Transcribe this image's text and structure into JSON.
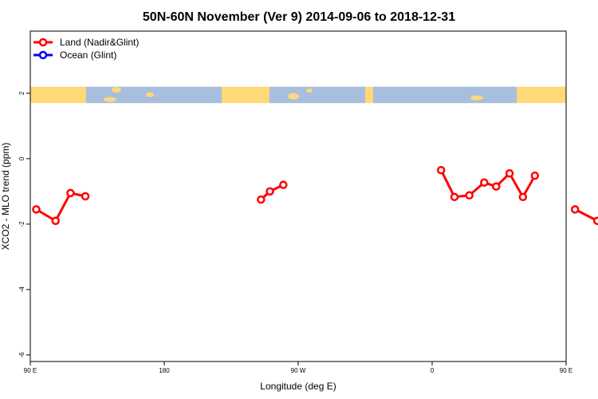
{
  "chart_data": {
    "type": "line",
    "title": "50N-60N November (Ver 9)   2014-09-06 to 2018-12-31",
    "xlabel": "Longitude (deg E)",
    "ylabel": "XCO2 - MLO trend (ppm)",
    "xlim": [
      90,
      450
    ],
    "ylim": [
      -6.2,
      3.9
    ],
    "x_ticks": [
      {
        "value": 90,
        "label": "90 E"
      },
      {
        "value": 180,
        "label": "180"
      },
      {
        "value": 270,
        "label": "90 W"
      },
      {
        "value": 360,
        "label": "0"
      },
      {
        "value": 450,
        "label": "90 E"
      },
      {
        "value": 540,
        "label": "180"
      }
    ],
    "y_ticks": [
      {
        "value": -6,
        "label": "-6"
      },
      {
        "value": -4,
        "label": "-4"
      },
      {
        "value": -2,
        "label": "-2"
      },
      {
        "value": 0,
        "label": "0"
      },
      {
        "value": 2,
        "label": "2"
      }
    ],
    "legend_position": "top-left",
    "map_strip": {
      "y_top": 2.2,
      "y_bottom": 1.7,
      "land_color": "#FFD878",
      "ocean_color": "#A8BEDE"
    },
    "series": [
      {
        "name": "Land (Nadir&Glint)",
        "color": "#FF0000",
        "segments": [
          [
            [
              94,
              -1.55
            ],
            [
              107,
              -1.9
            ],
            [
              117,
              -1.05
            ],
            [
              127,
              -1.15
            ]
          ],
          [
            [
              245,
              -1.25
            ],
            [
              251,
              -1.0
            ],
            [
              260,
              -0.8
            ]
          ],
          [
            [
              366,
              -0.35
            ],
            [
              375,
              -1.17
            ],
            [
              385,
              -1.12
            ],
            [
              395,
              -0.73
            ],
            [
              403,
              -0.85
            ],
            [
              412,
              -0.45
            ],
            [
              421,
              -1.17
            ],
            [
              429,
              -0.52
            ]
          ],
          [
            [
              456,
              -1.55
            ],
            [
              471,
              -1.9
            ],
            [
              479,
              -1.05
            ],
            [
              489,
              -1.15
            ]
          ]
        ]
      },
      {
        "name": "Ocean (Glint)",
        "color": "#0000FF",
        "segments": []
      }
    ]
  }
}
